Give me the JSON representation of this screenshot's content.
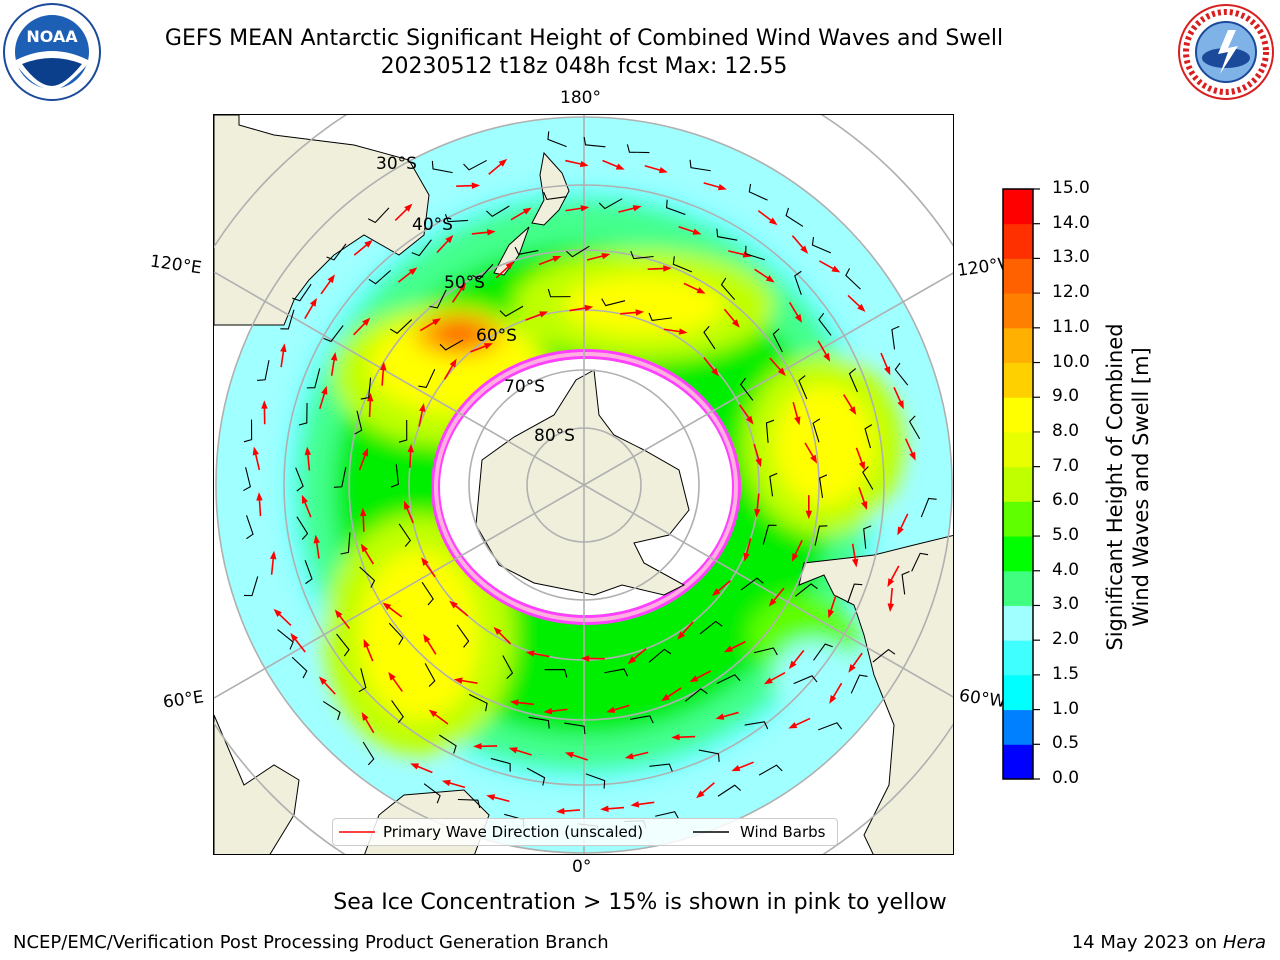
{
  "title": {
    "line1": "GEFS MEAN Antarctic Significant Height of Combined Wind Waves and Swell",
    "line2": "20230512 t18z 048h fcst   Max: 12.55"
  },
  "logos": {
    "left_text": "NOAA",
    "right_text": "NATIONAL WEATHER SERVICE"
  },
  "map": {
    "lon_labels": {
      "top": "180°",
      "left_upper": "120°E",
      "right_upper": "120°W",
      "left_lower": "60°E",
      "right_lower": "60°W",
      "bottom": "0°"
    },
    "lat_labels": [
      "30°S",
      "40°S",
      "50°S",
      "60°S",
      "70°S",
      "80°S"
    ]
  },
  "legend": {
    "wave_label": "Primary Wave Direction (unscaled)",
    "barb_label": "Wind Barbs",
    "wave_color": "#ff0000",
    "barb_color": "#000000"
  },
  "colorbar": {
    "title_line1": "Significant Height of Combined",
    "title_line2": "Wind Waves and Swell [m]",
    "ticks": [
      "0.0",
      "0.5",
      "1.0",
      "1.5",
      "2.0",
      "3.0",
      "4.0",
      "5.0",
      "6.0",
      "7.0",
      "8.0",
      "9.0",
      "10.0",
      "11.0",
      "12.0",
      "13.0",
      "14.0",
      "15.0"
    ],
    "colors": [
      "#0000ff",
      "#0080ff",
      "#00ffff",
      "#40ffff",
      "#a0ffff",
      "#40ff80",
      "#00ff00",
      "#60ff00",
      "#c0ff00",
      "#e8ff00",
      "#ffff00",
      "#ffd000",
      "#ffb000",
      "#ff8000",
      "#ff6000",
      "#ff3000",
      "#ff0000"
    ]
  },
  "caption": "Sea Ice Concentration > 15% is shown in pink to yellow",
  "footer": {
    "left": "NCEP/EMC/Verification Post Processing Product Generation Branch",
    "date": "14 May 2023 on",
    "machine": "Hera"
  }
}
